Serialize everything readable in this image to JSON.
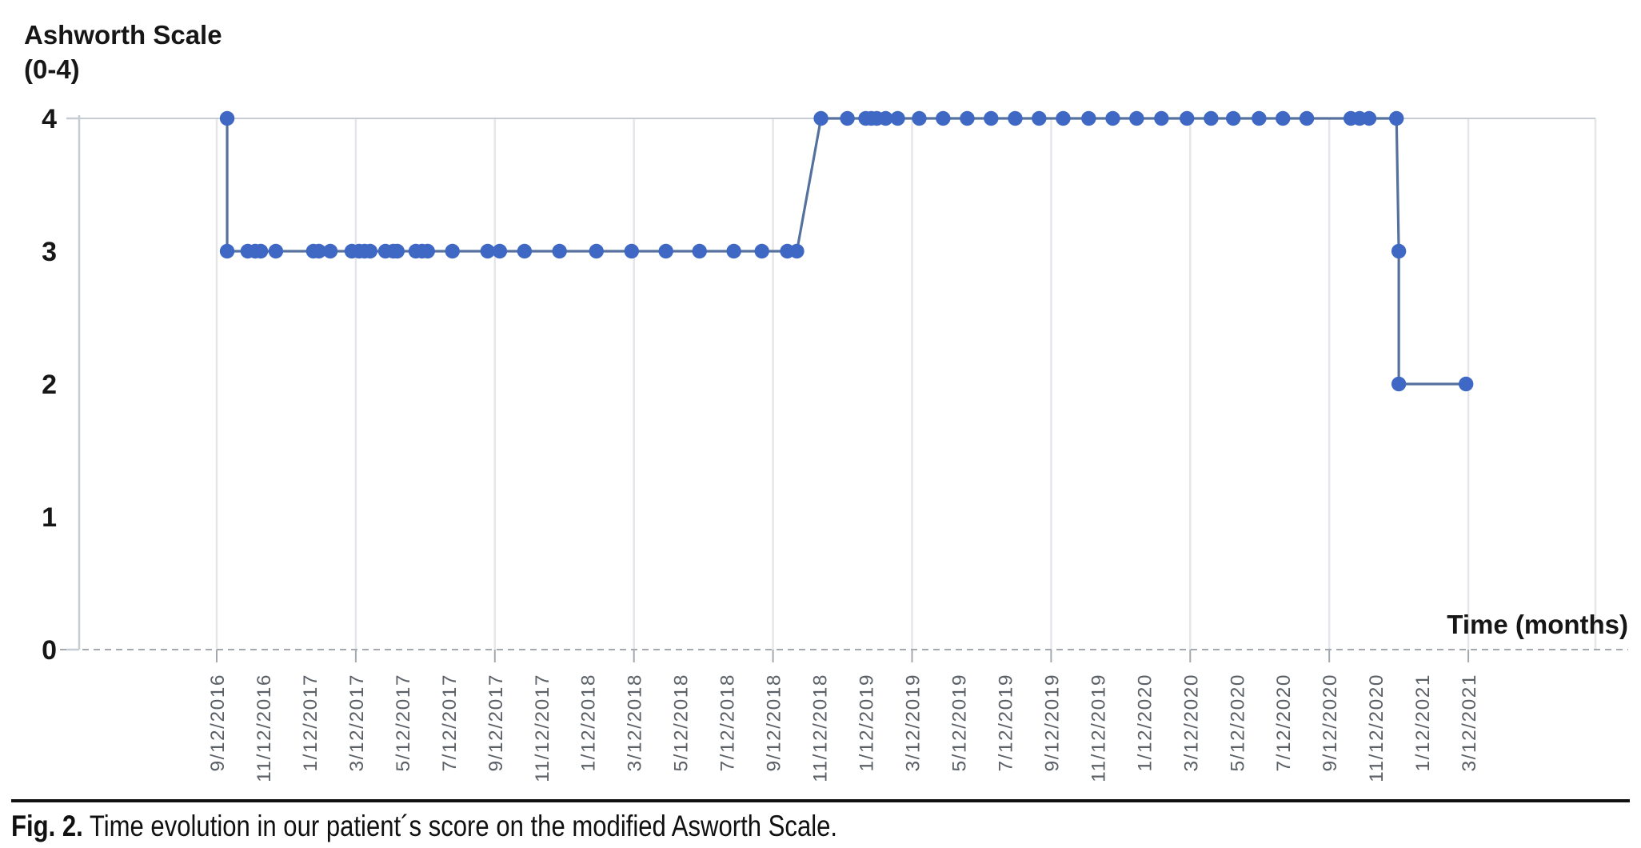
{
  "figure": {
    "y_axis_title_line1": "Ashworth Scale",
    "y_axis_title_line2": "(0-4)",
    "x_axis_label": "Time (months)",
    "caption_label": "Fig. 2.",
    "caption_text": " Time evolution in our patient´s score on the modified Asworth Scale."
  },
  "chart_data": {
    "type": "line",
    "title": "Ashworth Scale (0-4)",
    "xlabel": "Time (months)",
    "ylabel": "Ashworth Scale (0-4)",
    "ylim": [
      0,
      4
    ],
    "yticks": [
      0,
      1,
      2,
      3,
      4
    ],
    "x_tick_interval_months": 2,
    "gridline_interval_months": 6,
    "legend": "none",
    "x_tick_labels": [
      "9/12/2016",
      "11/12/2016",
      "1/12/2017",
      "3/12/2017",
      "5/12/2017",
      "7/12/2017",
      "9/12/2017",
      "11/12/2017",
      "1/12/2018",
      "3/12/2018",
      "5/12/2018",
      "7/12/2018",
      "9/12/2018",
      "11/12/2018",
      "1/12/2019",
      "3/12/2019",
      "5/12/2019",
      "7/12/2019",
      "9/12/2019",
      "11/12/2019",
      "1/12/2020",
      "3/12/2020",
      "5/12/2020",
      "7/12/2020",
      "9/12/2020",
      "11/12/2020",
      "1/12/2021",
      "3/12/2021"
    ],
    "series": [
      {
        "name": "Ashworth score",
        "x_unit": "months since 9/12/2016 (estimated from axis)",
        "points": [
          [
            0.45,
            4
          ],
          [
            0.45,
            3
          ],
          [
            1.34,
            3
          ],
          [
            1.66,
            3
          ],
          [
            1.9,
            3
          ],
          [
            2.55,
            3
          ],
          [
            4.17,
            3
          ],
          [
            4.41,
            3
          ],
          [
            4.9,
            3
          ],
          [
            5.83,
            3
          ],
          [
            6.14,
            3
          ],
          [
            6.38,
            3
          ],
          [
            6.62,
            3
          ],
          [
            7.28,
            3
          ],
          [
            7.62,
            3
          ],
          [
            7.79,
            3
          ],
          [
            8.59,
            3
          ],
          [
            8.86,
            3
          ],
          [
            9.1,
            3
          ],
          [
            10.17,
            3
          ],
          [
            11.69,
            3
          ],
          [
            12.21,
            3
          ],
          [
            13.28,
            3
          ],
          [
            14.79,
            3
          ],
          [
            16.38,
            3
          ],
          [
            17.9,
            3
          ],
          [
            19.38,
            3
          ],
          [
            20.83,
            3
          ],
          [
            22.31,
            3
          ],
          [
            23.52,
            3
          ],
          [
            24.62,
            3
          ],
          [
            25.03,
            3
          ],
          [
            26.07,
            4
          ],
          [
            27.21,
            4
          ],
          [
            28.0,
            4
          ],
          [
            28.24,
            4
          ],
          [
            28.48,
            4
          ],
          [
            28.86,
            4
          ],
          [
            29.38,
            4
          ],
          [
            30.31,
            4
          ],
          [
            31.34,
            4
          ],
          [
            32.38,
            4
          ],
          [
            33.41,
            4
          ],
          [
            34.45,
            4
          ],
          [
            35.48,
            4
          ],
          [
            36.52,
            4
          ],
          [
            37.62,
            4
          ],
          [
            38.66,
            4
          ],
          [
            39.69,
            4
          ],
          [
            40.76,
            4
          ],
          [
            41.86,
            4
          ],
          [
            42.9,
            4
          ],
          [
            43.86,
            4
          ],
          [
            44.97,
            4
          ],
          [
            46.0,
            4
          ],
          [
            47.03,
            4
          ],
          [
            48.93,
            4
          ],
          [
            49.31,
            4
          ],
          [
            49.72,
            4
          ],
          [
            50.9,
            4
          ],
          [
            51.0,
            3
          ],
          [
            51.0,
            2
          ],
          [
            53.9,
            2
          ]
        ]
      }
    ],
    "colors": {
      "marker": "#3e68c4",
      "line": "#56719e",
      "grid": "#e4e6ea",
      "axis": "#c6ccd4",
      "zero_line": "#a4a9b0",
      "x_tick_label": "#5b6066",
      "text": "#161616"
    }
  }
}
